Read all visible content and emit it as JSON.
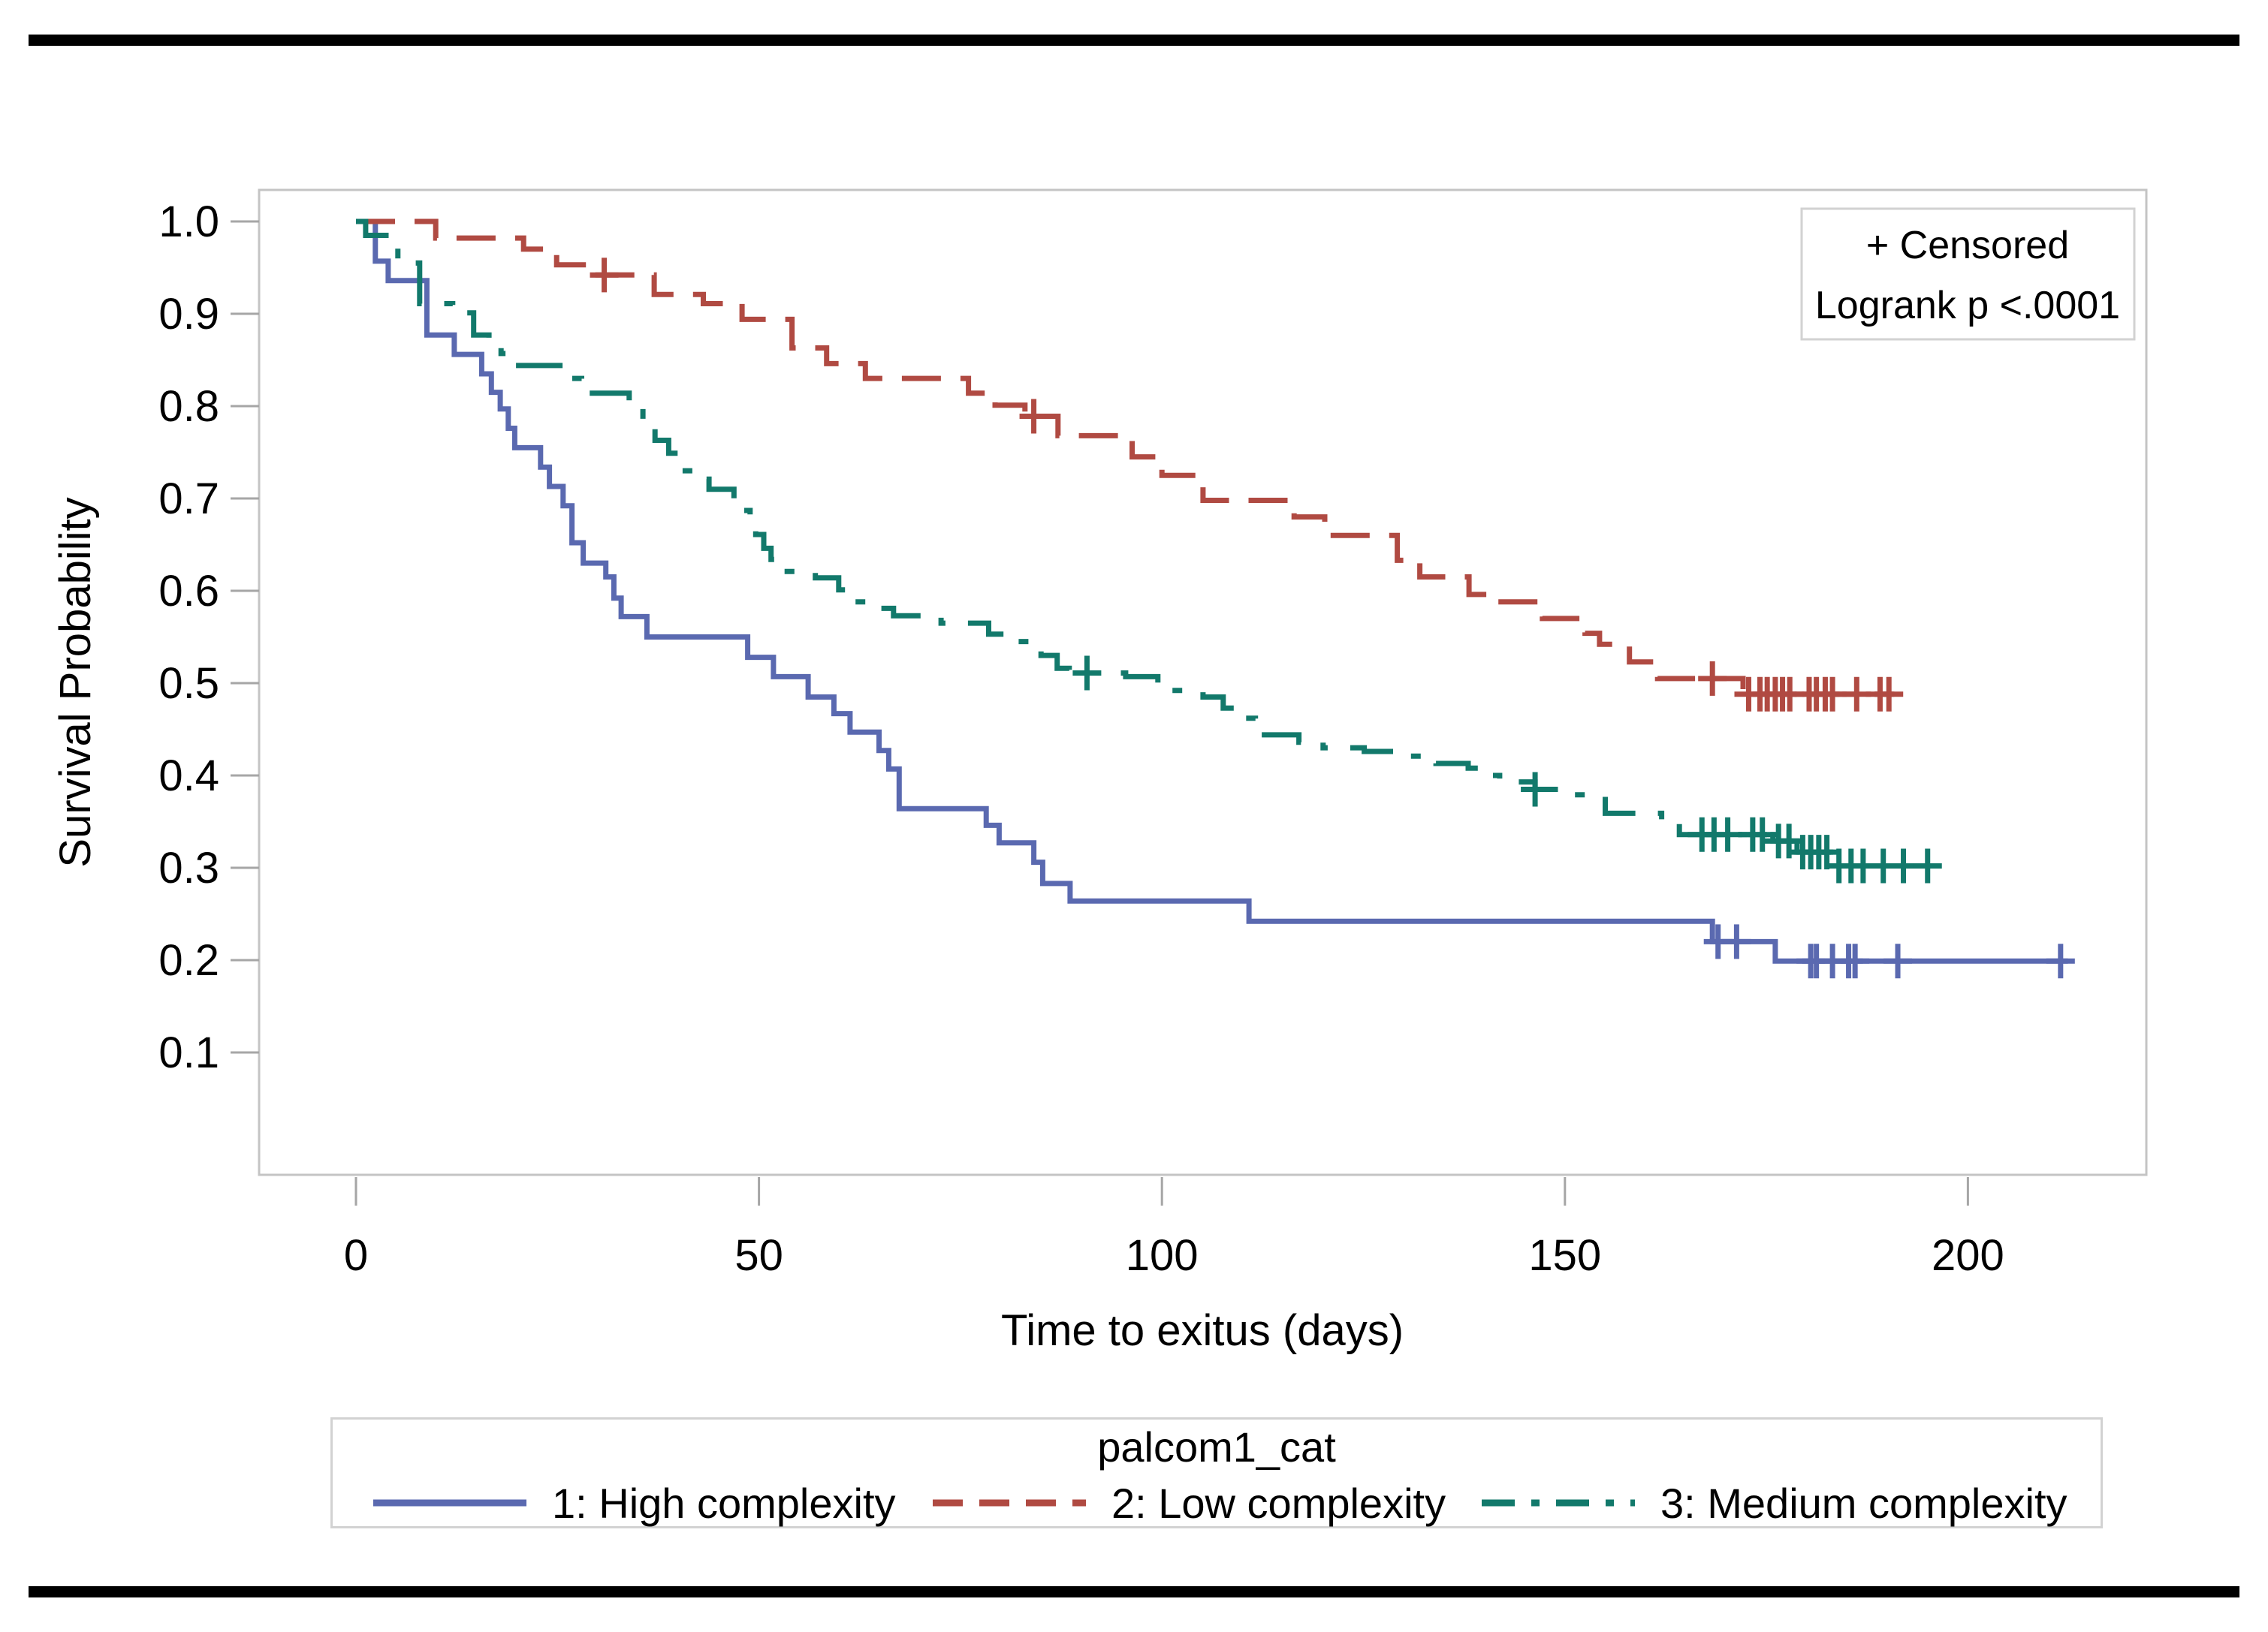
{
  "chart_data": {
    "type": "line",
    "subtype": "kaplan-meier-step-plot",
    "title": "",
    "xlabel": "Time to exitus (days)",
    "ylabel": "Survival Probability",
    "xlim": [
      0,
      222
    ],
    "ylim": [
      0,
      1.0
    ],
    "xtick_values": [
      0,
      50,
      100,
      150,
      200
    ],
    "xtick_labels": [
      "0",
      "50",
      "100",
      "150",
      "200"
    ],
    "ytick_values": [
      1.0,
      0.9,
      0.8,
      0.7,
      0.6,
      0.5,
      0.4,
      0.3,
      0.2,
      0.1
    ],
    "ytick_labels": [
      "1.0",
      "0.9",
      "0.8",
      "0.7",
      "0.6",
      "0.5",
      "0.4",
      "0.3",
      "0.2",
      "0.1"
    ],
    "grid": false,
    "annotation": {
      "censored": "+ Censored",
      "logrank": "Logrank p <.0001"
    },
    "legend": {
      "title": "palcom1_cat",
      "position": "bottom"
    },
    "censor_marker": "plus",
    "series": [
      {
        "name": "1: High complexity",
        "color": "#5a69b0",
        "dash": "solid",
        "end_t": 212.4,
        "points": [
          [
            0,
            1.0
          ],
          [
            2.4,
            0.957
          ],
          [
            4,
            0.936
          ],
          [
            8.8,
            0.877
          ],
          [
            12.2,
            0.856
          ],
          [
            15.6,
            0.835
          ],
          [
            16.8,
            0.815
          ],
          [
            17.9,
            0.797
          ],
          [
            18.9,
            0.776
          ],
          [
            19.7,
            0.755
          ],
          [
            22.9,
            0.734
          ],
          [
            24,
            0.713
          ],
          [
            25.7,
            0.692
          ],
          [
            26.8,
            0.652
          ],
          [
            28.2,
            0.63
          ],
          [
            31,
            0.615
          ],
          [
            32,
            0.592
          ],
          [
            32.9,
            0.572
          ],
          [
            36.1,
            0.55
          ],
          [
            48.6,
            0.528
          ],
          [
            51.8,
            0.507
          ],
          [
            56.1,
            0.485
          ],
          [
            59.3,
            0.467
          ],
          [
            61.3,
            0.447
          ],
          [
            64.9,
            0.427
          ],
          [
            66.1,
            0.407
          ],
          [
            67.4,
            0.364
          ],
          [
            78.2,
            0.346
          ],
          [
            79.8,
            0.327
          ],
          [
            84.1,
            0.306
          ],
          [
            85.2,
            0.283
          ],
          [
            88.6,
            0.264
          ],
          [
            110.8,
            0.242
          ],
          [
            168.3,
            0.22
          ],
          [
            176.1,
            0.199
          ]
        ],
        "censors": [
          [
            169,
            0.22
          ],
          [
            171.3,
            0.22
          ],
          [
            180.5,
            0.199
          ],
          [
            181.2,
            0.199
          ],
          [
            183.2,
            0.199
          ],
          [
            185.2,
            0.199
          ],
          [
            186,
            0.199
          ],
          [
            191.3,
            0.199
          ],
          [
            211.5,
            0.199
          ]
        ]
      },
      {
        "name": "2: Low complexity",
        "color": "#b04a42",
        "dash": "dash",
        "end_t": 190.7,
        "points": [
          [
            0,
            1.0
          ],
          [
            9.9,
            0.982
          ],
          [
            20.8,
            0.97
          ],
          [
            24.9,
            0.953
          ],
          [
            28.8,
            0.942
          ],
          [
            37,
            0.921
          ],
          [
            43.1,
            0.911
          ],
          [
            47.9,
            0.894
          ],
          [
            54.1,
            0.863
          ],
          [
            58.4,
            0.846
          ],
          [
            63.2,
            0.83
          ],
          [
            76,
            0.814
          ],
          [
            79.3,
            0.801
          ],
          [
            83,
            0.789
          ],
          [
            87.1,
            0.768
          ],
          [
            96.3,
            0.745
          ],
          [
            100,
            0.725
          ],
          [
            105.1,
            0.698
          ],
          [
            116.4,
            0.68
          ],
          [
            120.2,
            0.66
          ],
          [
            129.2,
            0.633
          ],
          [
            132,
            0.615
          ],
          [
            138.1,
            0.596
          ],
          [
            140.3,
            0.588
          ],
          [
            147.2,
            0.57
          ],
          [
            152.5,
            0.554
          ],
          [
            154.3,
            0.542
          ],
          [
            158,
            0.523
          ],
          [
            161.5,
            0.505
          ],
          [
            172.1,
            0.488
          ]
        ],
        "censors": [
          [
            30.8,
            0.942
          ],
          [
            84.1,
            0.789
          ],
          [
            168.3,
            0.505
          ],
          [
            172.8,
            0.488
          ],
          [
            174.2,
            0.488
          ],
          [
            175.1,
            0.488
          ],
          [
            176.1,
            0.488
          ],
          [
            177,
            0.488
          ],
          [
            177.9,
            0.488
          ],
          [
            180.3,
            0.488
          ],
          [
            181.2,
            0.488
          ],
          [
            182.3,
            0.488
          ],
          [
            183.2,
            0.488
          ],
          [
            186.2,
            0.488
          ],
          [
            189.1,
            0.488
          ],
          [
            190.2,
            0.488
          ]
        ]
      },
      {
        "name": "3: Medium complexity",
        "color": "#12796b",
        "dash": "dashdot",
        "end_t": 196,
        "points": [
          [
            0,
            1.0
          ],
          [
            1.2,
            0.985
          ],
          [
            5.2,
            0.955
          ],
          [
            7.9,
            0.911
          ],
          [
            12,
            0.901
          ],
          [
            14.6,
            0.877
          ],
          [
            16.5,
            0.866
          ],
          [
            18,
            0.857
          ],
          [
            19.8,
            0.844
          ],
          [
            26,
            0.83
          ],
          [
            28,
            0.814
          ],
          [
            33.9,
            0.798
          ],
          [
            35.6,
            0.781
          ],
          [
            37.1,
            0.763
          ],
          [
            38.8,
            0.749
          ],
          [
            40.5,
            0.73
          ],
          [
            41.9,
            0.721
          ],
          [
            43.8,
            0.71
          ],
          [
            46.9,
            0.687
          ],
          [
            48.9,
            0.673
          ],
          [
            49.6,
            0.661
          ],
          [
            50.6,
            0.646
          ],
          [
            51.5,
            0.634
          ],
          [
            53.5,
            0.621
          ],
          [
            57,
            0.614
          ],
          [
            59.9,
            0.601
          ],
          [
            61.1,
            0.588
          ],
          [
            63.2,
            0.581
          ],
          [
            66.7,
            0.573
          ],
          [
            72.6,
            0.565
          ],
          [
            78.5,
            0.553
          ],
          [
            81,
            0.545
          ],
          [
            85,
            0.53
          ],
          [
            87,
            0.516
          ],
          [
            88.5,
            0.511
          ],
          [
            95.5,
            0.507
          ],
          [
            99.5,
            0.492
          ],
          [
            105.1,
            0.485
          ],
          [
            107.6,
            0.473
          ],
          [
            110,
            0.462
          ],
          [
            111.6,
            0.452
          ],
          [
            112.2,
            0.444
          ],
          [
            117,
            0.436
          ],
          [
            120,
            0.43
          ],
          [
            125.1,
            0.426
          ],
          [
            130,
            0.421
          ],
          [
            134,
            0.413
          ],
          [
            138,
            0.408
          ],
          [
            140.3,
            0.4
          ],
          [
            141.9,
            0.393
          ],
          [
            146.3,
            0.385
          ],
          [
            151,
            0.379
          ],
          [
            155,
            0.359
          ],
          [
            162,
            0.348
          ],
          [
            164.2,
            0.336
          ],
          [
            175.8,
            0.329
          ],
          [
            178.8,
            0.317
          ],
          [
            183,
            0.302
          ]
        ],
        "censors": [
          [
            90.7,
            0.511
          ],
          [
            146.3,
            0.385
          ],
          [
            167,
            0.336
          ],
          [
            168.5,
            0.336
          ],
          [
            170.2,
            0.336
          ],
          [
            173.3,
            0.336
          ],
          [
            174.5,
            0.336
          ],
          [
            176.5,
            0.329
          ],
          [
            177.8,
            0.329
          ],
          [
            179.5,
            0.317
          ],
          [
            180.5,
            0.317
          ],
          [
            181.5,
            0.317
          ],
          [
            182.5,
            0.317
          ],
          [
            184,
            0.302
          ],
          [
            185.5,
            0.302
          ],
          [
            187,
            0.302
          ],
          [
            189.5,
            0.302
          ],
          [
            192,
            0.302
          ],
          [
            195,
            0.302
          ]
        ]
      }
    ],
    "colors": {
      "frame": "#c4c4c4",
      "tick": "#a6a6a6",
      "text": "#000000",
      "page_bar": "#000000"
    }
  }
}
